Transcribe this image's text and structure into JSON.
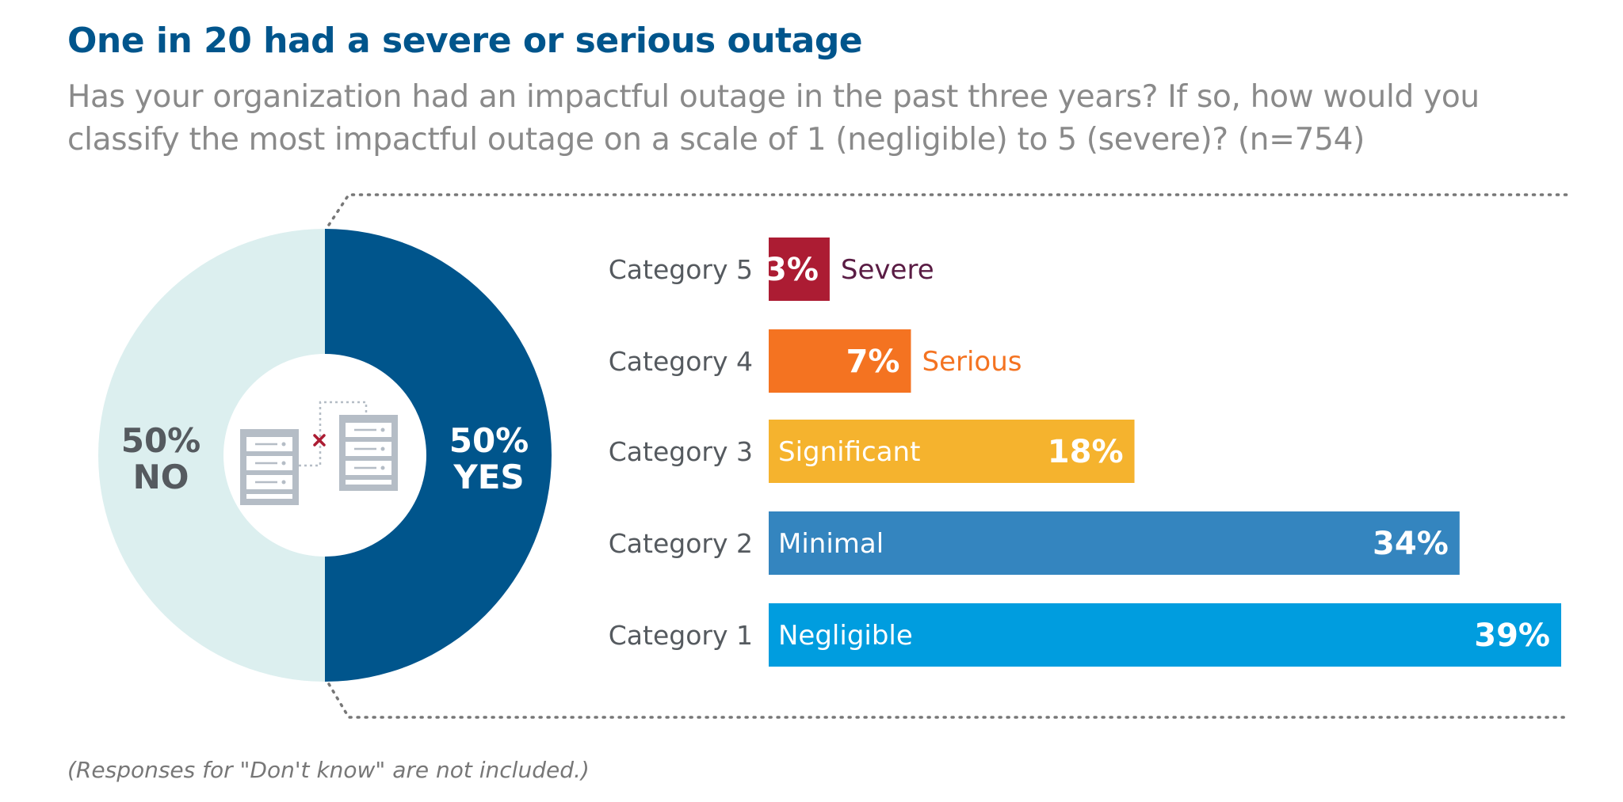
{
  "title": "One in 20 had a severe or serious outage",
  "subtitle": "Has your organization had an impactful outage in the past three years? If so, how would you classify the most impactful outage on a scale of 1 (negligible) to 5 (severe)? (n=754)",
  "footnote": "(Responses for \"Don't know\" are not included.)",
  "icons": [
    "server-icon",
    "server-icon",
    "disconnect-x-icon"
  ],
  "chart_data": [
    {
      "type": "pie",
      "variant": "donut",
      "slices": [
        {
          "name": "YES",
          "value": 50,
          "label": "50%",
          "color": "#00558c"
        },
        {
          "name": "NO",
          "value": 50,
          "label": "50%",
          "color": "#dcefef"
        }
      ]
    },
    {
      "type": "bar",
      "orientation": "horizontal",
      "xlim": [
        0,
        39
      ],
      "categories": [
        "Category 5",
        "Category 4",
        "Category 3",
        "Category 2",
        "Category 1"
      ],
      "values": [
        3,
        7,
        18,
        34,
        39
      ],
      "value_labels": [
        "3%",
        "7%",
        "18%",
        "34%",
        "39%"
      ],
      "descriptors": [
        "Severe",
        "Serious",
        "Significant",
        "Minimal",
        "Negligible"
      ],
      "colors": [
        "#ac1c33",
        "#f47321",
        "#f5b32e",
        "#3485bf",
        "#009ddf"
      ],
      "descriptor_colors_outside": [
        "#5a1c44",
        "#f47321"
      ]
    }
  ]
}
